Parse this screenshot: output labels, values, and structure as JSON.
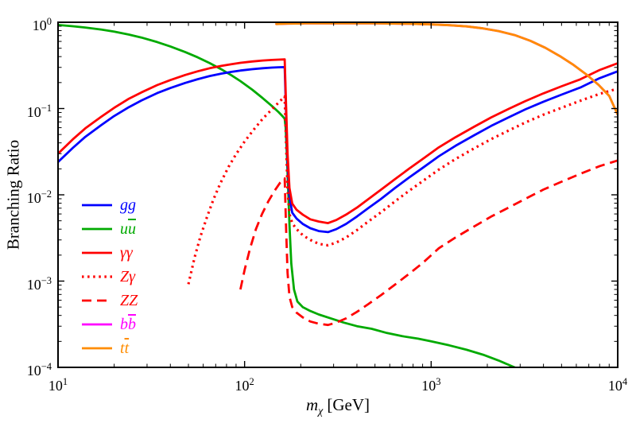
{
  "figure": {
    "ylabel": "Branching Ratio",
    "xlabel_symbol": "m",
    "xlabel_subscript": "χ",
    "xlabel_units": "[GeV]"
  },
  "chart_data": {
    "type": "line",
    "title": "",
    "xlabel": "m_chi [GeV]",
    "ylabel": "Branching Ratio",
    "xscale": "log",
    "yscale": "log",
    "xlim": [
      10,
      10000
    ],
    "ylim": [
      0.0001,
      1
    ],
    "grid": false,
    "legend_position": "inside-left",
    "frame_color": "#000000",
    "x_tick_exponents": [
      1,
      2,
      3,
      4
    ],
    "y_tick_exponents": [
      0,
      -1,
      -2,
      -3,
      -4
    ],
    "series": [
      {
        "id": "gg",
        "z": 3,
        "color": "#0000ff",
        "width": 2.8,
        "dash": null,
        "label_parts": [
          {
            "t": "gg",
            "bar": false
          }
        ],
        "points": [
          [
            10,
            0.024
          ],
          [
            12,
            0.035
          ],
          [
            14,
            0.047
          ],
          [
            17,
            0.064
          ],
          [
            20,
            0.082
          ],
          [
            24,
            0.104
          ],
          [
            28,
            0.124
          ],
          [
            34,
            0.151
          ],
          [
            40,
            0.173
          ],
          [
            48,
            0.198
          ],
          [
            56,
            0.219
          ],
          [
            65,
            0.238
          ],
          [
            75,
            0.254
          ],
          [
            85,
            0.266
          ],
          [
            95,
            0.276
          ],
          [
            110,
            0.286
          ],
          [
            125,
            0.293
          ],
          [
            140,
            0.298
          ],
          [
            152,
            0.301
          ],
          [
            164,
            0.302
          ],
          [
            167,
            0.085
          ],
          [
            170,
            0.024
          ],
          [
            174,
            0.0095
          ],
          [
            180,
            0.0062
          ],
          [
            190,
            0.0053
          ],
          [
            205,
            0.0046
          ],
          [
            225,
            0.0041
          ],
          [
            250,
            0.0038
          ],
          [
            280,
            0.0037
          ],
          [
            310,
            0.004
          ],
          [
            350,
            0.0046
          ],
          [
            400,
            0.0056
          ],
          [
            460,
            0.007
          ],
          [
            540,
            0.009
          ],
          [
            640,
            0.012
          ],
          [
            760,
            0.0158
          ],
          [
            900,
            0.0205
          ],
          [
            1100,
            0.028
          ],
          [
            1350,
            0.037
          ],
          [
            1700,
            0.049
          ],
          [
            2100,
            0.063
          ],
          [
            2600,
            0.079
          ],
          [
            3200,
            0.098
          ],
          [
            4000,
            0.12
          ],
          [
            5000,
            0.145
          ],
          [
            6300,
            0.175
          ],
          [
            8000,
            0.225
          ],
          [
            10000,
            0.27
          ]
        ]
      },
      {
        "id": "uubar",
        "z": 2,
        "color": "#00aa00",
        "width": 2.8,
        "dash": null,
        "label_parts": [
          {
            "t": "u",
            "bar": false
          },
          {
            "t": "u",
            "bar": true
          }
        ],
        "points": [
          [
            10,
            0.93
          ],
          [
            12,
            0.9
          ],
          [
            14,
            0.87
          ],
          [
            17,
            0.825
          ],
          [
            20,
            0.78
          ],
          [
            24,
            0.72
          ],
          [
            28,
            0.665
          ],
          [
            34,
            0.59
          ],
          [
            40,
            0.525
          ],
          [
            48,
            0.452
          ],
          [
            56,
            0.392
          ],
          [
            65,
            0.336
          ],
          [
            75,
            0.285
          ],
          [
            85,
            0.243
          ],
          [
            95,
            0.208
          ],
          [
            110,
            0.165
          ],
          [
            125,
            0.132
          ],
          [
            140,
            0.107
          ],
          [
            152,
            0.091
          ],
          [
            160,
            0.081
          ],
          [
            164,
            0.076
          ],
          [
            166,
            0.06
          ],
          [
            168,
            0.035
          ],
          [
            171,
            0.013
          ],
          [
            174,
            0.0045
          ],
          [
            178,
            0.0016
          ],
          [
            184,
            0.0008
          ],
          [
            192,
            0.00058
          ],
          [
            205,
            0.0005
          ],
          [
            225,
            0.00045
          ],
          [
            250,
            0.00041
          ],
          [
            290,
            0.00037
          ],
          [
            340,
            0.00033
          ],
          [
            400,
            0.0003
          ],
          [
            480,
            0.00028
          ],
          [
            580,
            0.00025
          ],
          [
            700,
            0.00023
          ],
          [
            850,
            0.000215
          ],
          [
            1000,
            0.0002
          ],
          [
            1250,
            0.00018
          ],
          [
            1550,
            0.00016
          ],
          [
            1900,
            0.00014
          ],
          [
            2300,
            0.00012
          ],
          [
            2800,
            0.0001
          ],
          [
            3400,
            8e-05
          ],
          [
            4000,
            6.5e-05
          ]
        ]
      },
      {
        "id": "gammagamma",
        "z": 4,
        "color": "#ff0000",
        "width": 2.8,
        "dash": null,
        "label_parts": [
          {
            "t": "γγ",
            "bar": false
          }
        ],
        "points": [
          [
            10,
            0.03
          ],
          [
            12,
            0.044
          ],
          [
            14,
            0.059
          ],
          [
            17,
            0.08
          ],
          [
            20,
            0.102
          ],
          [
            24,
            0.13
          ],
          [
            28,
            0.154
          ],
          [
            34,
            0.187
          ],
          [
            40,
            0.214
          ],
          [
            48,
            0.245
          ],
          [
            56,
            0.27
          ],
          [
            65,
            0.293
          ],
          [
            75,
            0.312
          ],
          [
            85,
            0.327
          ],
          [
            95,
            0.339
          ],
          [
            110,
            0.351
          ],
          [
            125,
            0.36
          ],
          [
            140,
            0.366
          ],
          [
            152,
            0.369
          ],
          [
            164,
            0.371
          ],
          [
            167,
            0.105
          ],
          [
            170,
            0.03
          ],
          [
            174,
            0.012
          ],
          [
            180,
            0.0079
          ],
          [
            190,
            0.0067
          ],
          [
            205,
            0.0059
          ],
          [
            225,
            0.0052
          ],
          [
            250,
            0.0049
          ],
          [
            280,
            0.0047
          ],
          [
            310,
            0.0051
          ],
          [
            350,
            0.0059
          ],
          [
            400,
            0.0071
          ],
          [
            460,
            0.0089
          ],
          [
            540,
            0.0115
          ],
          [
            640,
            0.0152
          ],
          [
            760,
            0.02
          ],
          [
            900,
            0.026
          ],
          [
            1100,
            0.0355
          ],
          [
            1350,
            0.0465
          ],
          [
            1700,
            0.0615
          ],
          [
            2100,
            0.079
          ],
          [
            2600,
            0.099
          ],
          [
            3200,
            0.122
          ],
          [
            4000,
            0.15
          ],
          [
            5000,
            0.181
          ],
          [
            6300,
            0.218
          ],
          [
            8000,
            0.28
          ],
          [
            10000,
            0.335
          ]
        ]
      },
      {
        "id": "zgamma",
        "z": 5,
        "color": "#ff0000",
        "width": 3.2,
        "dash": "2.5 4.6",
        "label_parts": [
          {
            "t": "Zγ",
            "bar": false
          }
        ],
        "points": [
          [
            50,
            0.00092
          ],
          [
            54,
            0.0019
          ],
          [
            58,
            0.0033
          ],
          [
            63,
            0.0056
          ],
          [
            68,
            0.0088
          ],
          [
            74,
            0.0135
          ],
          [
            82,
            0.021
          ],
          [
            90,
            0.0295
          ],
          [
            100,
            0.0415
          ],
          [
            112,
            0.057
          ],
          [
            125,
            0.076
          ],
          [
            140,
            0.098
          ],
          [
            152,
            0.117
          ],
          [
            160,
            0.131
          ],
          [
            164,
            0.138
          ],
          [
            167,
            0.04
          ],
          [
            170,
            0.0115
          ],
          [
            174,
            0.006
          ],
          [
            180,
            0.0047
          ],
          [
            190,
            0.004
          ],
          [
            205,
            0.0034
          ],
          [
            225,
            0.003
          ],
          [
            250,
            0.0027
          ],
          [
            280,
            0.0026
          ],
          [
            310,
            0.0028
          ],
          [
            350,
            0.0032
          ],
          [
            400,
            0.0039
          ],
          [
            460,
            0.0049
          ],
          [
            540,
            0.0063
          ],
          [
            640,
            0.0084
          ],
          [
            760,
            0.0111
          ],
          [
            900,
            0.0144
          ],
          [
            1100,
            0.0196
          ],
          [
            1350,
            0.026
          ],
          [
            1700,
            0.0345
          ],
          [
            2100,
            0.0443
          ],
          [
            2600,
            0.0555
          ],
          [
            3200,
            0.069
          ],
          [
            4000,
            0.085
          ],
          [
            5000,
            0.102
          ],
          [
            6300,
            0.123
          ],
          [
            8000,
            0.148
          ],
          [
            10000,
            0.17
          ]
        ]
      },
      {
        "id": "zz",
        "z": 6,
        "color": "#ff0000",
        "width": 2.8,
        "dash": "12 7",
        "label_parts": [
          {
            "t": "ZZ",
            "bar": false
          }
        ],
        "points": [
          [
            95,
            0.0008
          ],
          [
            100,
            0.00135
          ],
          [
            107,
            0.0024
          ],
          [
            115,
            0.004
          ],
          [
            124,
            0.006
          ],
          [
            134,
            0.0084
          ],
          [
            145,
            0.0112
          ],
          [
            155,
            0.0138
          ],
          [
            164,
            0.0155
          ],
          [
            167,
            0.004
          ],
          [
            170,
            0.00125
          ],
          [
            174,
            0.00066
          ],
          [
            180,
            0.0005
          ],
          [
            190,
            0.00043
          ],
          [
            205,
            0.00038
          ],
          [
            225,
            0.00034
          ],
          [
            250,
            0.00032
          ],
          [
            280,
            0.00031
          ],
          [
            310,
            0.00033
          ],
          [
            350,
            0.00037
          ],
          [
            400,
            0.00044
          ],
          [
            460,
            0.00054
          ],
          [
            540,
            0.00069
          ],
          [
            640,
            0.00091
          ],
          [
            760,
            0.00121
          ],
          [
            900,
            0.00162
          ],
          [
            1100,
            0.0024
          ],
          [
            1350,
            0.0032
          ],
          [
            1700,
            0.0043
          ],
          [
            2100,
            0.0056
          ],
          [
            2600,
            0.0071
          ],
          [
            3200,
            0.009
          ],
          [
            4000,
            0.0115
          ],
          [
            5000,
            0.0142
          ],
          [
            6300,
            0.0175
          ],
          [
            8000,
            0.0215
          ],
          [
            10000,
            0.025
          ]
        ]
      },
      {
        "id": "bbbar",
        "z": 7,
        "color": "#ff00ff",
        "width": 2.8,
        "dash": null,
        "label_parts": [
          {
            "t": "b",
            "bar": false
          },
          {
            "t": "b",
            "bar": true
          }
        ],
        "points": [
          [
            148,
            0.955
          ],
          [
            170,
            0.965
          ],
          [
            210,
            0.97
          ],
          [
            280,
            0.972
          ],
          [
            380,
            0.972
          ],
          [
            500,
            0.97
          ],
          [
            650,
            0.965
          ],
          [
            800,
            0.958
          ],
          [
            1000,
            0.945
          ],
          [
            1250,
            0.925
          ],
          [
            1550,
            0.895
          ],
          [
            1900,
            0.85
          ],
          [
            2300,
            0.79
          ],
          [
            2800,
            0.71
          ],
          [
            3400,
            0.61
          ],
          [
            4100,
            0.505
          ],
          [
            4900,
            0.405
          ],
          [
            5800,
            0.32
          ],
          [
            6800,
            0.248
          ],
          [
            7900,
            0.188
          ],
          [
            9000,
            0.14
          ],
          [
            10000,
            0.085
          ]
        ]
      },
      {
        "id": "ttbar",
        "z": 8,
        "color": "#ff8c00",
        "width": 2.8,
        "dash": null,
        "label_parts": [
          {
            "t": "t",
            "bar": false
          },
          {
            "t": "t",
            "bar": true
          }
        ],
        "points": [
          [
            148,
            0.955
          ],
          [
            170,
            0.965
          ],
          [
            210,
            0.97
          ],
          [
            280,
            0.972
          ],
          [
            380,
            0.972
          ],
          [
            500,
            0.97
          ],
          [
            650,
            0.965
          ],
          [
            800,
            0.958
          ],
          [
            1000,
            0.945
          ],
          [
            1250,
            0.925
          ],
          [
            1550,
            0.895
          ],
          [
            1900,
            0.85
          ],
          [
            2300,
            0.79
          ],
          [
            2800,
            0.71
          ],
          [
            3400,
            0.61
          ],
          [
            4100,
            0.505
          ],
          [
            4900,
            0.405
          ],
          [
            5800,
            0.32
          ],
          [
            6800,
            0.248
          ],
          [
            7900,
            0.188
          ],
          [
            9000,
            0.14
          ],
          [
            10000,
            0.085
          ]
        ]
      }
    ]
  }
}
